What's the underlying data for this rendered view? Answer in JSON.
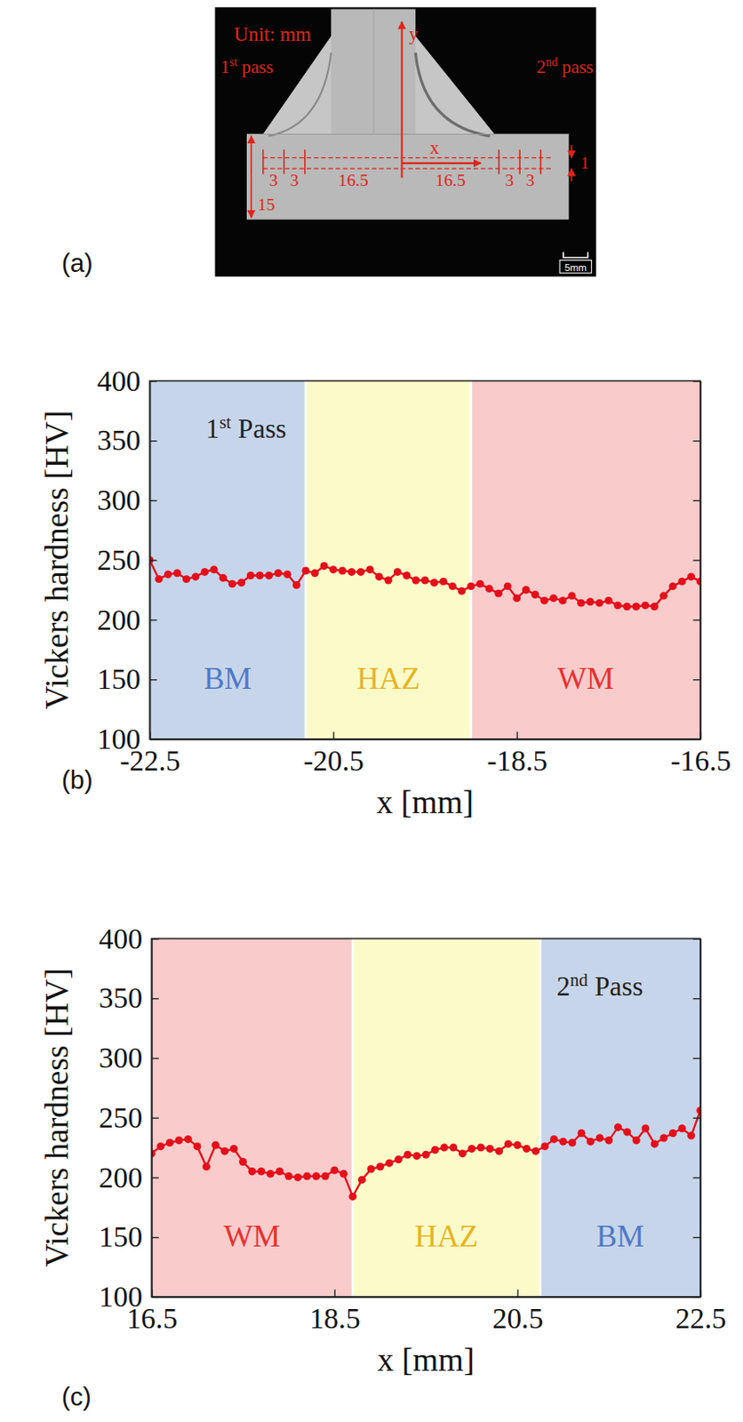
{
  "panel_a": {
    "label": "(a)",
    "unit": "Unit: mm",
    "pass_labels": [
      "1st pass",
      "2nd pass"
    ],
    "axis_labels": [
      "y",
      "x"
    ],
    "dimensions": {
      "left": [
        3,
        3,
        16.5
      ],
      "right": [
        16.5,
        3,
        3
      ],
      "height": 15,
      "depth": 1
    },
    "scale_bar": "5mm"
  },
  "chart_data": [
    {
      "type": "line",
      "panel_label": "(b)",
      "x_label": "x [mm]",
      "y_label": "Vickers hardness [HV]",
      "annotation": {
        "text": "1st Pass",
        "x": -21.45,
        "y": 360
      },
      "x": [
        -22.5,
        -22.4,
        -22.3,
        -22.2,
        -22.1,
        -22.0,
        -21.9,
        -21.8,
        -21.7,
        -21.6,
        -21.5,
        -21.4,
        -21.3,
        -21.2,
        -21.1,
        -21.0,
        -20.9,
        -20.8,
        -20.7,
        -20.6,
        -20.5,
        -20.4,
        -20.3,
        -20.2,
        -20.1,
        -20.0,
        -19.9,
        -19.8,
        -19.7,
        -19.6,
        -19.5,
        -19.4,
        -19.3,
        -19.2,
        -19.1,
        -19.0,
        -18.9,
        -18.8,
        -18.7,
        -18.6,
        -18.5,
        -18.4,
        -18.3,
        -18.2,
        -18.1,
        -18.0,
        -17.9,
        -17.8,
        -17.7,
        -17.6,
        -17.5,
        -17.4,
        -17.3,
        -17.2,
        -17.1,
        -17.0,
        -16.9,
        -16.8,
        -16.7,
        -16.6,
        -16.5
      ],
      "series": [
        {
          "color": "#e3101b",
          "marker": "circle",
          "line_style": "solid",
          "values": [
            250,
            234,
            238,
            239,
            234,
            236,
            240,
            242,
            235,
            230,
            231,
            237,
            237,
            237,
            239,
            238,
            229,
            241,
            239,
            245,
            242,
            241,
            240,
            240,
            242,
            236,
            233,
            240,
            237,
            233,
            233,
            231,
            232,
            228,
            224,
            228,
            230,
            226,
            222,
            228,
            218,
            225,
            221,
            216,
            218,
            216,
            220,
            214,
            215,
            214,
            216,
            212,
            211,
            211,
            212,
            211,
            220,
            228,
            232,
            236,
            232
          ]
        }
      ],
      "regions": [
        {
          "label": "BM",
          "from": -22.5,
          "to": -20.8,
          "color": "#c7d5ea",
          "text_color": "#4f79c7"
        },
        {
          "label": "HAZ",
          "from": -20.8,
          "to": -19.0,
          "color": "#fbfbc9",
          "text_color": "#e6b422"
        },
        {
          "label": "WM",
          "from": -19.0,
          "to": -16.5,
          "color": "#f9cbcb",
          "text_color": "#e53232"
        }
      ],
      "xlim": [
        -22.5,
        -16.5
      ],
      "xticks": [
        -22.5,
        -20.5,
        -18.5,
        -16.5
      ],
      "ylim": [
        100,
        400
      ],
      "yticks": [
        100,
        150,
        200,
        250,
        300,
        350,
        400
      ],
      "grid": false
    },
    {
      "type": "line",
      "panel_label": "(c)",
      "x_label": "x [mm]",
      "y_label": "Vickers hardness [HV]",
      "annotation": {
        "text": "2nd Pass",
        "x": 21.4,
        "y": 360
      },
      "x": [
        16.5,
        16.6,
        16.7,
        16.8,
        16.9,
        17.0,
        17.1,
        17.2,
        17.3,
        17.4,
        17.5,
        17.6,
        17.7,
        17.8,
        17.9,
        18.0,
        18.1,
        18.2,
        18.3,
        18.4,
        18.5,
        18.6,
        18.7,
        18.8,
        18.9,
        19.0,
        19.1,
        19.2,
        19.3,
        19.4,
        19.5,
        19.6,
        19.7,
        19.8,
        19.9,
        20.0,
        20.1,
        20.2,
        20.3,
        20.4,
        20.5,
        20.6,
        20.7,
        20.8,
        20.9,
        21.0,
        21.1,
        21.2,
        21.3,
        21.4,
        21.5,
        21.6,
        21.7,
        21.8,
        21.9,
        22.0,
        22.1,
        22.2,
        22.3,
        22.4,
        22.5
      ],
      "series": [
        {
          "color": "#e3101b",
          "marker": "circle",
          "line_style": "solid",
          "values": [
            220,
            226,
            229,
            231,
            232,
            226,
            209,
            227,
            222,
            224,
            213,
            205,
            205,
            203,
            205,
            201,
            200,
            201,
            201,
            201,
            206,
            203,
            184,
            198,
            207,
            209,
            212,
            215,
            219,
            218,
            219,
            223,
            225,
            225,
            220,
            224,
            225,
            224,
            222,
            228,
            227,
            224,
            222,
            226,
            232,
            230,
            229,
            237,
            230,
            233,
            231,
            242,
            238,
            231,
            241,
            228,
            233,
            237,
            241,
            235,
            256
          ]
        }
      ],
      "regions": [
        {
          "label": "WM",
          "from": 16.5,
          "to": 18.7,
          "color": "#f9cbcb",
          "text_color": "#e53232"
        },
        {
          "label": "HAZ",
          "from": 18.7,
          "to": 20.75,
          "color": "#fbfbc9",
          "text_color": "#e6b422"
        },
        {
          "label": "BM",
          "from": 20.75,
          "to": 22.5,
          "color": "#c7d5ea",
          "text_color": "#4f79c7"
        }
      ],
      "xlim": [
        16.5,
        22.5
      ],
      "xticks": [
        16.5,
        18.5,
        20.5,
        22.5
      ],
      "ylim": [
        100,
        400
      ],
      "yticks": [
        100,
        150,
        200,
        250,
        300,
        350,
        400
      ],
      "grid": false
    }
  ]
}
